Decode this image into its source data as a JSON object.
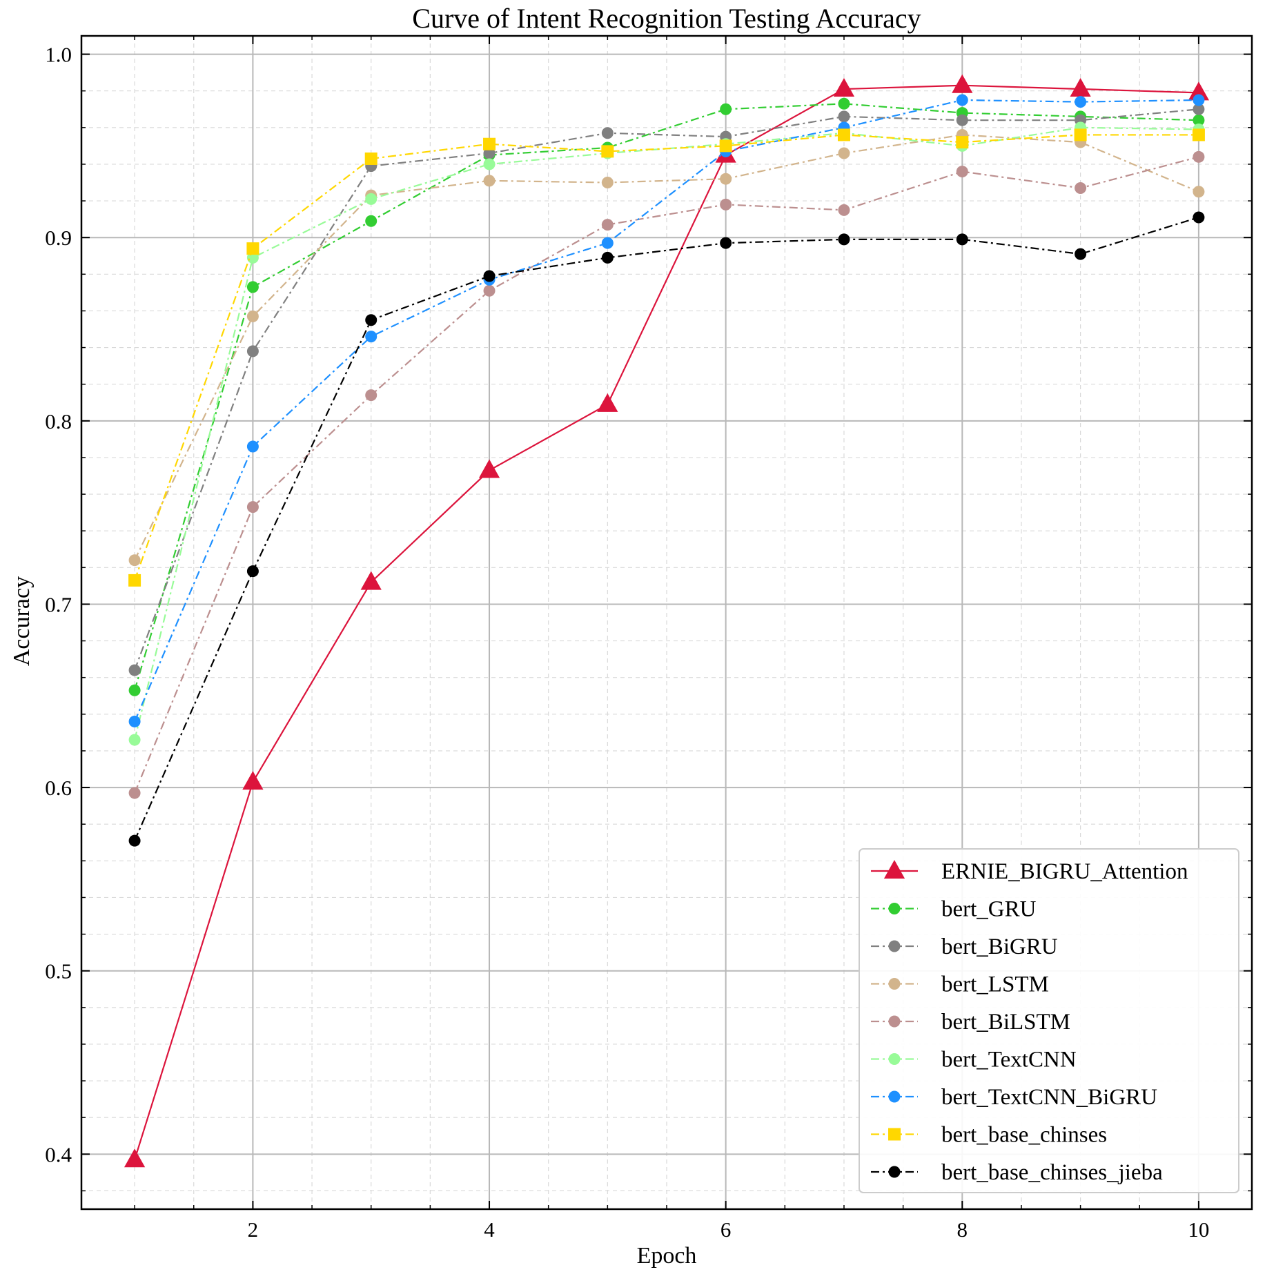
{
  "chart_data": {
    "type": "line",
    "title": "Curve of Intent Recognition Testing Accuracy",
    "xlabel": "Epoch",
    "ylabel": "Accuracy",
    "xlim": [
      0.55,
      10.45
    ],
    "ylim": [
      0.37,
      1.01
    ],
    "xticks": [
      2,
      4,
      6,
      8,
      10
    ],
    "xtick_labels": [
      "2",
      "4",
      "6",
      "8",
      "10"
    ],
    "yticks": [
      0.4,
      0.5,
      0.6,
      0.7,
      0.8,
      0.9,
      1.0
    ],
    "ytick_labels": [
      "0.4",
      "0.5",
      "0.6",
      "0.7",
      "0.8",
      "0.9",
      "1.0"
    ],
    "grid": true,
    "legend_position": "bottom-right",
    "x": [
      1,
      2,
      3,
      4,
      5,
      6,
      7,
      8,
      9,
      10
    ],
    "series": [
      {
        "name": "ERNIE_BIGRU_Attention",
        "color": "#dc143c",
        "marker": "triangle",
        "linestyle": "solid",
        "values": [
          0.397,
          0.603,
          0.712,
          0.773,
          0.809,
          0.945,
          0.981,
          0.983,
          0.981,
          0.979
        ]
      },
      {
        "name": "bert_GRU",
        "color": "#32cd32",
        "marker": "circle",
        "linestyle": "dashdot",
        "values": [
          0.653,
          0.873,
          0.909,
          0.945,
          0.949,
          0.97,
          0.973,
          0.968,
          0.966,
          0.964
        ]
      },
      {
        "name": "bert_BiGRU",
        "color": "#808080",
        "marker": "circle",
        "linestyle": "dashdot",
        "values": [
          0.664,
          0.838,
          0.939,
          0.946,
          0.957,
          0.955,
          0.966,
          0.964,
          0.964,
          0.97
        ]
      },
      {
        "name": "bert_LSTM",
        "color": "#d2b48c",
        "marker": "circle",
        "linestyle": "dashdot",
        "values": [
          0.724,
          0.857,
          0.923,
          0.931,
          0.93,
          0.932,
          0.946,
          0.956,
          0.952,
          0.925
        ]
      },
      {
        "name": "bert_BiLSTM",
        "color": "#bc8f8f",
        "marker": "circle",
        "linestyle": "dashdot",
        "values": [
          0.597,
          0.753,
          0.814,
          0.871,
          0.907,
          0.918,
          0.915,
          0.936,
          0.927,
          0.944
        ]
      },
      {
        "name": "bert_TextCNN",
        "color": "#98fb98",
        "marker": "circle",
        "linestyle": "dashdot",
        "values": [
          0.626,
          0.889,
          0.921,
          0.94,
          0.946,
          0.951,
          0.957,
          0.95,
          0.96,
          0.959
        ]
      },
      {
        "name": "bert_TextCNN_BiGRU",
        "color": "#1e90ff",
        "marker": "circle",
        "linestyle": "dashdot",
        "values": [
          0.636,
          0.786,
          0.846,
          0.877,
          0.897,
          0.947,
          0.96,
          0.975,
          0.974,
          0.975
        ]
      },
      {
        "name": "bert_base_chinses",
        "color": "#ffd700",
        "marker": "square",
        "linestyle": "dashdot",
        "values": [
          0.713,
          0.894,
          0.943,
          0.951,
          0.947,
          0.95,
          0.956,
          0.952,
          0.956,
          0.956
        ]
      },
      {
        "name": "bert_base_chinses_jieba",
        "color": "#000000",
        "marker": "circle",
        "linestyle": "dashdot",
        "values": [
          0.571,
          0.718,
          0.855,
          0.879,
          0.889,
          0.897,
          0.899,
          0.899,
          0.891,
          0.911
        ]
      }
    ]
  }
}
